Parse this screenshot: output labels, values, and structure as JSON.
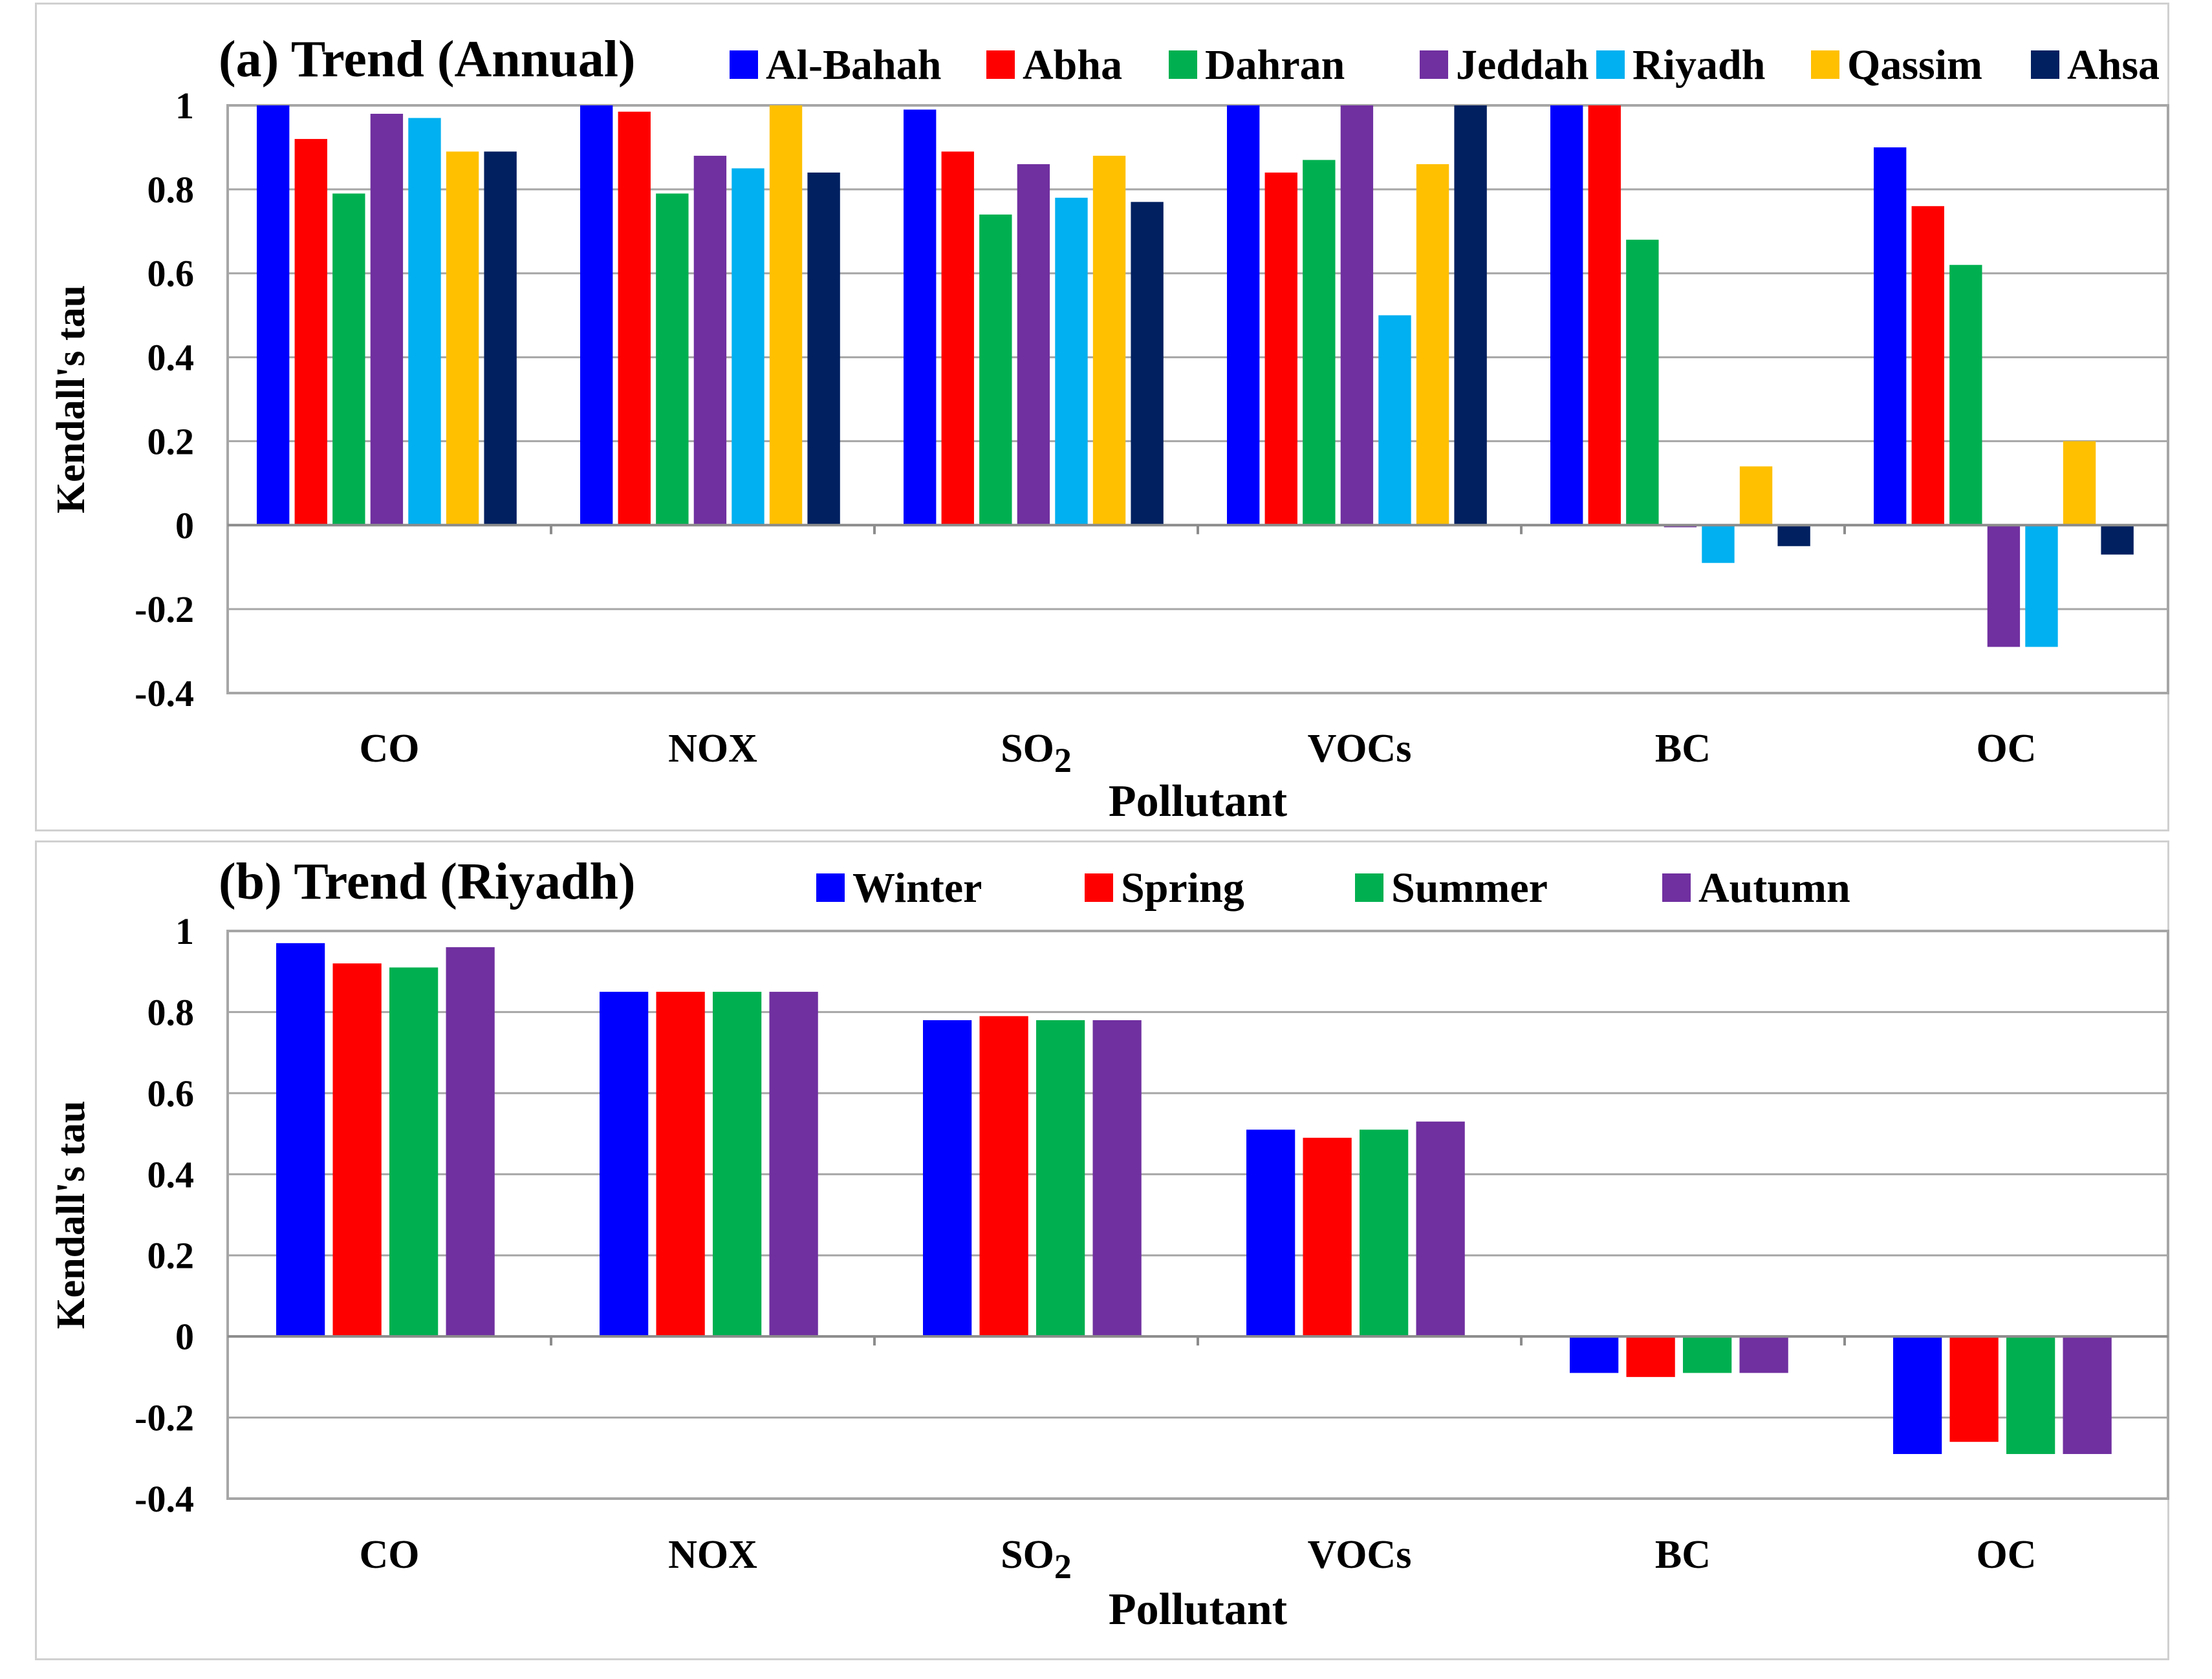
{
  "chart_data": [
    {
      "type": "bar",
      "title": "(a) Trend (Annual)",
      "xlabel": "Pollutant",
      "ylabel": "Kendall's tau",
      "ylim": [
        -0.4,
        1
      ],
      "yticks": [
        "1",
        "0.8",
        "0.6",
        "0.4",
        "0.2",
        "0",
        "-0.2",
        "-0.4"
      ],
      "grid": true,
      "legend_position": "top",
      "categories": [
        "CO",
        "NOX",
        "SO2",
        "VOCs",
        "BC",
        "OC"
      ],
      "series": [
        {
          "name": "Al-Bahah",
          "color": "#0000FF",
          "values": [
            1.0,
            1.0,
            0.99,
            1.0,
            1.0,
            0.9
          ]
        },
        {
          "name": "Abha",
          "color": "#FF0000",
          "values": [
            0.92,
            0.985,
            0.89,
            0.84,
            1.0,
            0.76
          ]
        },
        {
          "name": "Dahran",
          "color": "#00B050",
          "values": [
            0.79,
            0.79,
            0.74,
            0.87,
            0.68,
            0.62
          ]
        },
        {
          "name": "Jeddah",
          "color": "#7030A0",
          "values": [
            0.98,
            0.88,
            0.86,
            1.0,
            -0.005,
            -0.29
          ]
        },
        {
          "name": "Riyadh",
          "color": "#00B0F0",
          "values": [
            0.97,
            0.85,
            0.78,
            0.5,
            -0.09,
            -0.29
          ]
        },
        {
          "name": "Qassim",
          "color": "#FFC000",
          "values": [
            0.89,
            1.0,
            0.88,
            0.86,
            0.14,
            0.2
          ]
        },
        {
          "name": "Ahsa",
          "color": "#002060",
          "values": [
            0.89,
            0.84,
            0.77,
            1.0,
            -0.05,
            -0.07
          ]
        }
      ]
    },
    {
      "type": "bar",
      "title": "(b) Trend (Riyadh)",
      "xlabel": "Pollutant",
      "ylabel": "Kendall's tau",
      "ylim": [
        -0.4,
        1
      ],
      "yticks": [
        "1",
        "0.8",
        "0.6",
        "0.4",
        "0.2",
        "0",
        "-0.2",
        "-0.4"
      ],
      "grid": true,
      "legend_position": "top",
      "categories": [
        "CO",
        "NOX",
        "SO2",
        "VOCs",
        "BC",
        "OC"
      ],
      "series": [
        {
          "name": "Winter",
          "color": "#0000FF",
          "values": [
            0.97,
            0.85,
            0.78,
            0.51,
            -0.09,
            -0.29
          ]
        },
        {
          "name": "Spring",
          "color": "#FF0000",
          "values": [
            0.92,
            0.85,
            0.79,
            0.49,
            -0.1,
            -0.26
          ]
        },
        {
          "name": "Summer",
          "color": "#00B050",
          "values": [
            0.91,
            0.85,
            0.78,
            0.51,
            -0.09,
            -0.29
          ]
        },
        {
          "name": "Autumn",
          "color": "#7030A0",
          "values": [
            0.96,
            0.85,
            0.78,
            0.53,
            -0.09,
            -0.29
          ]
        }
      ]
    }
  ]
}
